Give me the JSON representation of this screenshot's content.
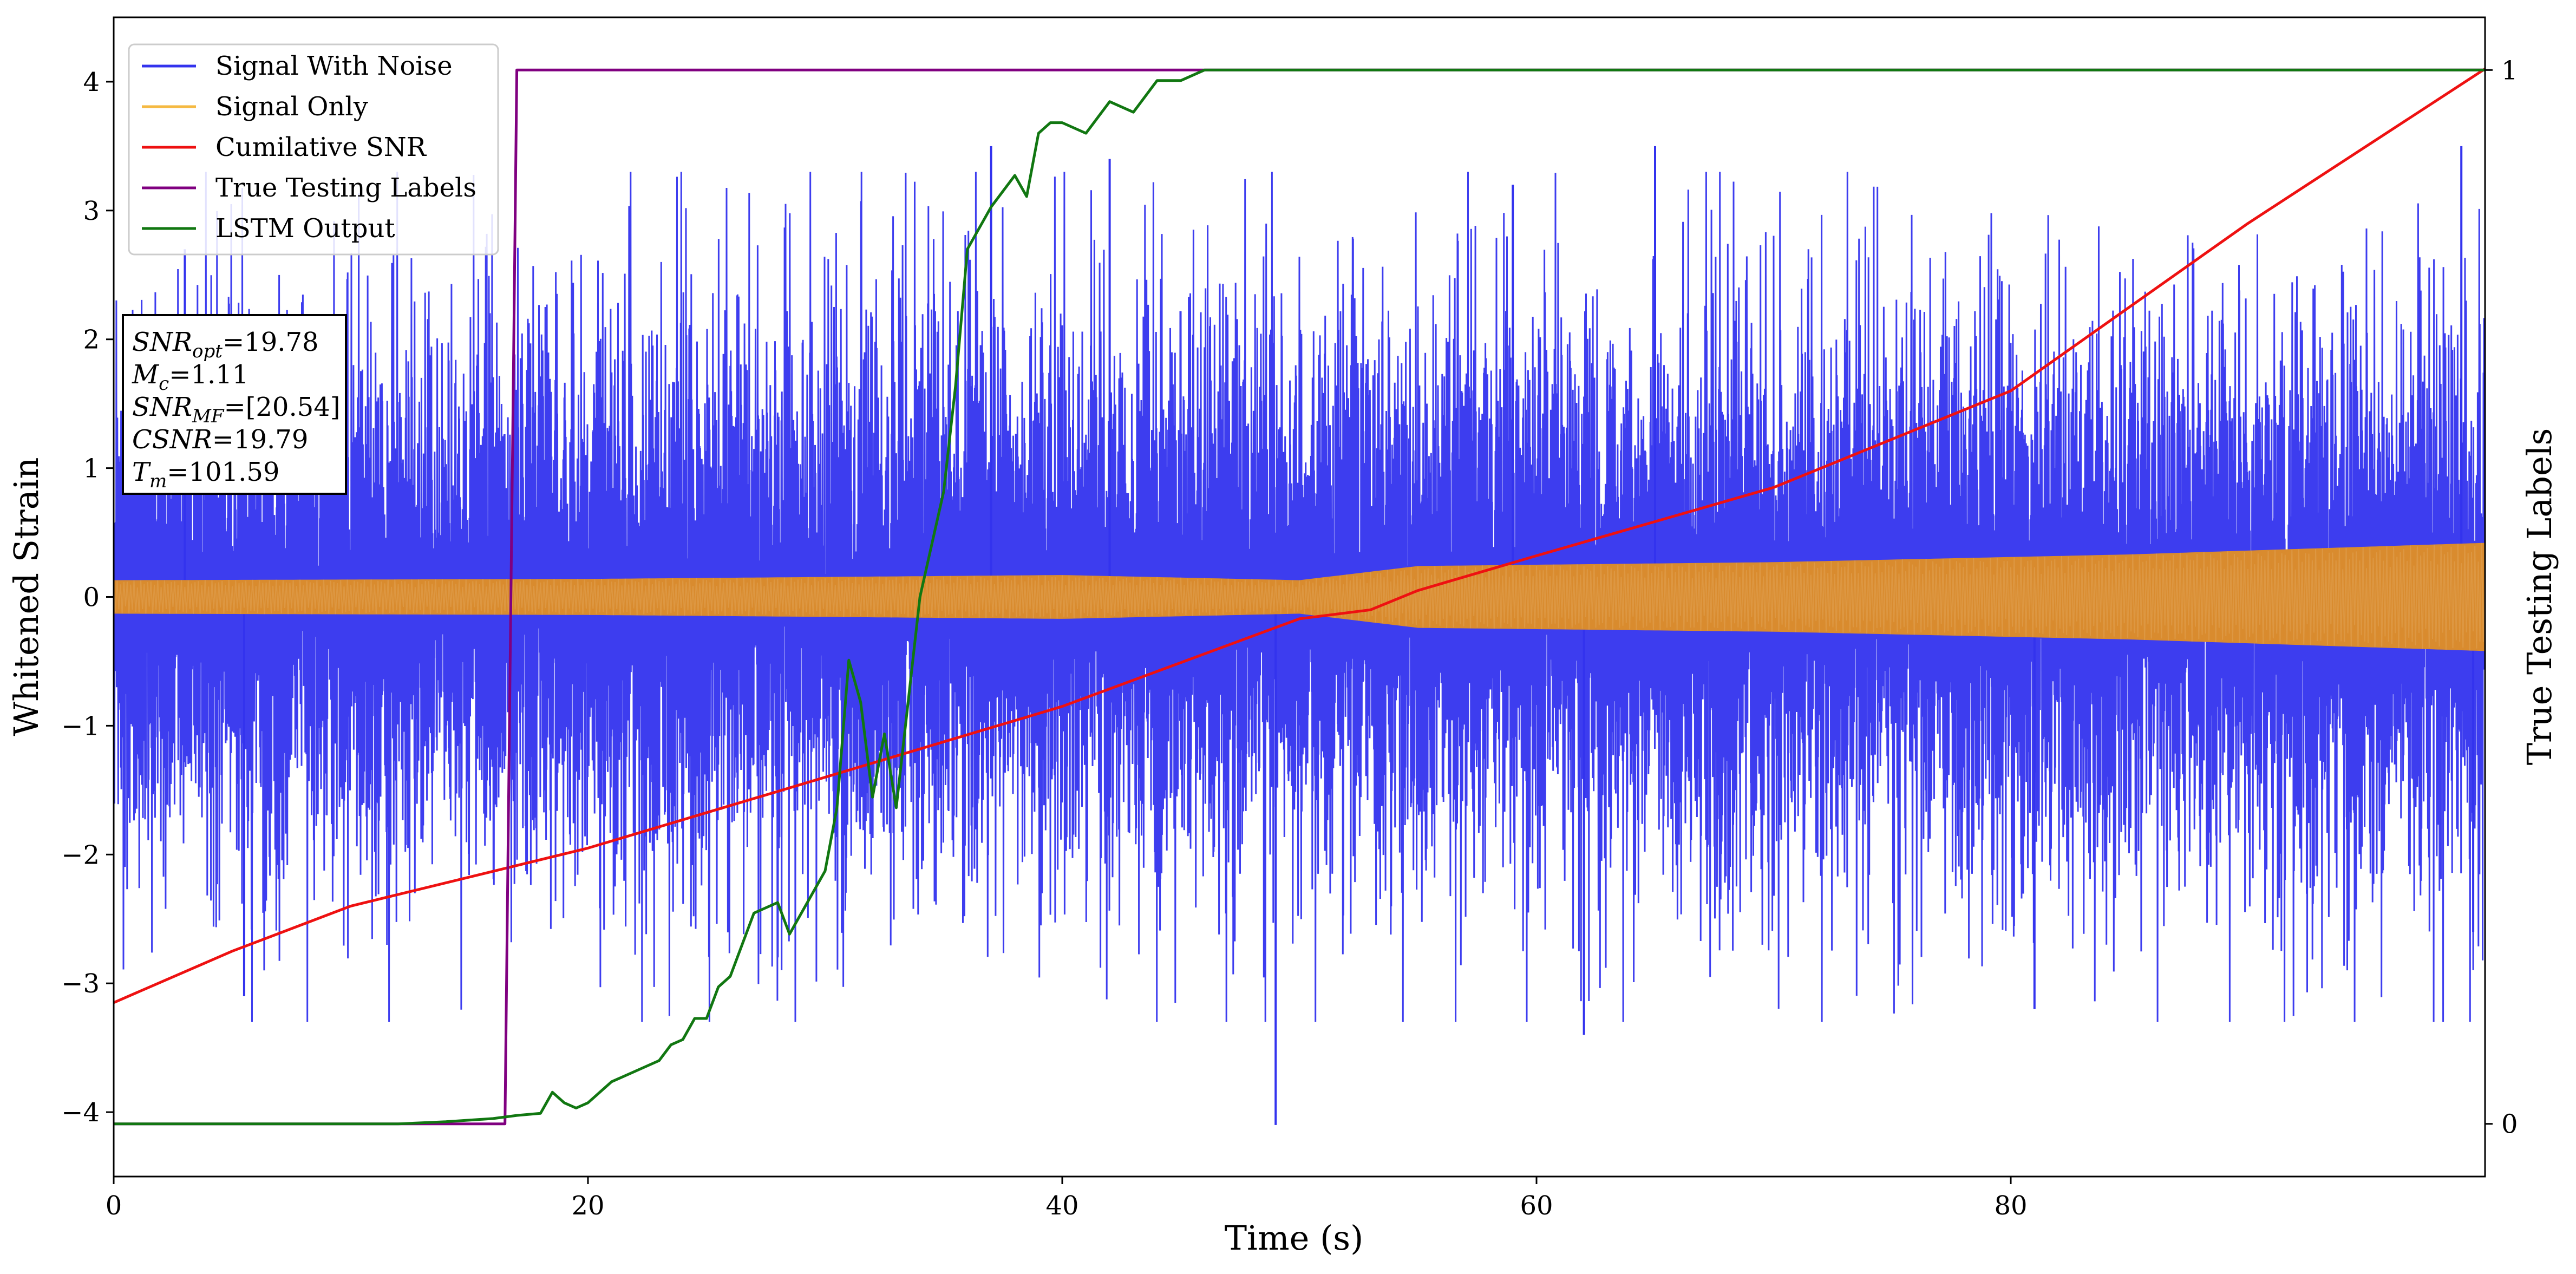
{
  "chart_data": {
    "type": "line",
    "xlabel": "Time (s)",
    "ylabel": "Whitened Strain",
    "ylabel_right": "True Testing Labels",
    "xlim": [
      0,
      100
    ],
    "ylim": [
      -4.5,
      4.5
    ],
    "ylim_right": [
      -0.05,
      1.05
    ],
    "x_ticks": [
      "0",
      "20",
      "40",
      "60",
      "80"
    ],
    "y_ticks": [
      "−4",
      "−3",
      "−2",
      "−1",
      "0",
      "1",
      "2",
      "3",
      "4"
    ],
    "y_ticks_right": [
      "0",
      "1"
    ],
    "grid": false,
    "legend_position": "top-left",
    "legend": [
      {
        "label": "Signal With Noise",
        "color": "#3333ee"
      },
      {
        "label": "Signal Only",
        "color": "#f5b942"
      },
      {
        "label": "Cumilative SNR",
        "color": "#ee1111"
      },
      {
        "label": "True Testing Labels",
        "color": "#800080"
      },
      {
        "label": "LSTM Output",
        "color": "#117711"
      }
    ],
    "stats": [
      {
        "label": "SNR",
        "sub": "opt",
        "value": "=19.78"
      },
      {
        "label": "M",
        "sub": "c",
        "value": "=1.11"
      },
      {
        "label": "SNR",
        "sub": "MF",
        "value": "=[20.54]"
      },
      {
        "label": "CSNR",
        "sub": "",
        "value": "=19.79"
      },
      {
        "label": "T",
        "sub": "m",
        "value": "=101.59"
      }
    ],
    "series": [
      {
        "name": "Signal With Noise",
        "axis": "left",
        "color": "#3333ee",
        "envelope": {
          "x": [
            0,
            10,
            20,
            30,
            40,
            49,
            50,
            60,
            70,
            80,
            90,
            100
          ],
          "upper_typical": [
            1.9,
            1.9,
            2.0,
            2.0,
            2.0,
            2.0,
            2.0,
            2.0,
            2.0,
            2.0,
            2.0,
            2.1
          ],
          "lower_typical": [
            -1.9,
            -1.9,
            -2.0,
            -2.0,
            -2.0,
            -2.0,
            -2.0,
            -2.0,
            -2.0,
            -2.0,
            -2.0,
            -2.1
          ]
        },
        "peaks": [
          [
            3,
            2.7
          ],
          [
            5.5,
            -3.1
          ],
          [
            37,
            3.5
          ],
          [
            42,
            3.4
          ],
          [
            49,
            -4.1
          ],
          [
            59,
            3.2
          ],
          [
            62,
            -3.4
          ],
          [
            65,
            3.5
          ],
          [
            81,
            -3.2
          ],
          [
            99,
            3.5
          ],
          [
            99.5,
            -2.6
          ]
        ]
      },
      {
        "name": "Signal Only",
        "axis": "left",
        "color": "#d98b2e",
        "amplitude": {
          "x": [
            0,
            20,
            40,
            50,
            55,
            70,
            85,
            100
          ],
          "y": [
            0.13,
            0.14,
            0.17,
            0.13,
            0.24,
            0.27,
            0.33,
            0.42
          ]
        }
      },
      {
        "name": "Cumilative SNR",
        "axis": "left",
        "color": "#ee1111",
        "x": [
          0,
          5,
          10,
          20,
          30,
          40,
          50,
          53,
          55,
          60,
          70,
          80,
          90,
          95,
          100
        ],
        "y": [
          -3.15,
          -2.75,
          -2.4,
          -1.95,
          -1.4,
          -0.85,
          -0.17,
          -0.1,
          0.05,
          0.32,
          0.85,
          1.6,
          2.9,
          3.5,
          4.1
        ]
      },
      {
        "name": "True Testing Labels",
        "axis": "right",
        "color": "#800080",
        "x": [
          0,
          16.5,
          17.0,
          100
        ],
        "y": [
          0,
          0,
          1,
          1
        ]
      },
      {
        "name": "LSTM Output",
        "axis": "right",
        "color": "#117711",
        "x": [
          0,
          12,
          14,
          16,
          17,
          18,
          18.5,
          19,
          19.5,
          20,
          20.5,
          21,
          22,
          23,
          23.5,
          24,
          24.5,
          25,
          25.5,
          26,
          27,
          28,
          28.5,
          29,
          29.5,
          30,
          30.5,
          31,
          31.5,
          32,
          32.5,
          33,
          33.5,
          34,
          34.5,
          35,
          35.5,
          36,
          37,
          38,
          38.5,
          39,
          39.5,
          40,
          41,
          42,
          43,
          44,
          45,
          46,
          48,
          50,
          52,
          54,
          56,
          60,
          70,
          80,
          90,
          100
        ],
        "y": [
          0,
          0,
          0.002,
          0.005,
          0.008,
          0.01,
          0.03,
          0.02,
          0.015,
          0.02,
          0.03,
          0.04,
          0.05,
          0.06,
          0.075,
          0.08,
          0.1,
          0.1,
          0.13,
          0.14,
          0.2,
          0.21,
          0.18,
          0.2,
          0.22,
          0.24,
          0.3,
          0.44,
          0.4,
          0.31,
          0.37,
          0.3,
          0.4,
          0.5,
          0.55,
          0.6,
          0.7,
          0.83,
          0.87,
          0.9,
          0.88,
          0.94,
          0.95,
          0.95,
          0.94,
          0.97,
          0.96,
          0.99,
          0.99,
          1.0,
          1.0,
          1.0,
          1.0,
          1.0,
          1.0,
          1.0,
          1.0,
          1.0,
          1.0,
          1.0
        ]
      }
    ]
  }
}
